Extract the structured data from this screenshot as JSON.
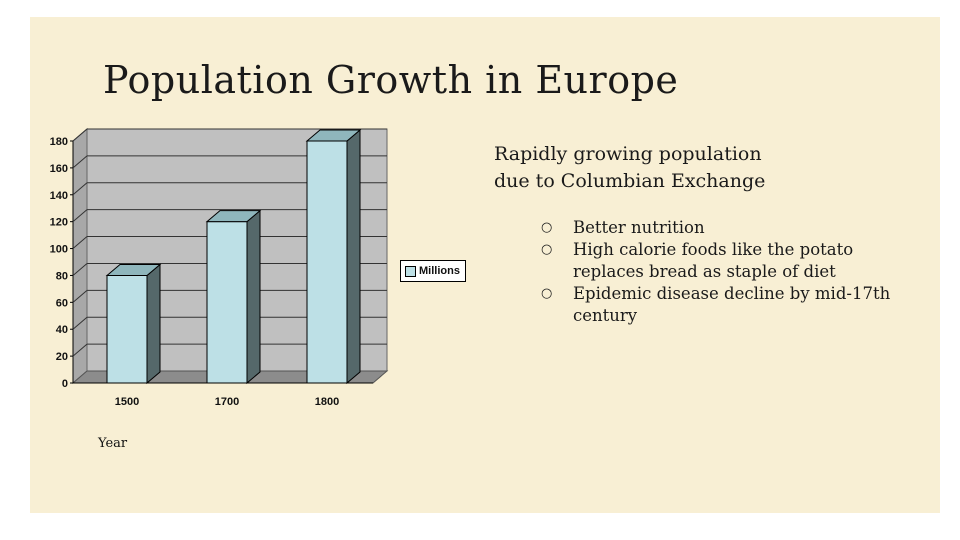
{
  "slide": {
    "title": "Population Growth in Europe"
  },
  "chart_data": {
    "type": "bar",
    "categories": [
      "1500",
      "1700",
      "1800"
    ],
    "series": [
      {
        "name": "Millions",
        "values": [
          80,
          120,
          180
        ]
      }
    ],
    "xlabel": "Year",
    "ylabel": "",
    "ylim": [
      0,
      180
    ],
    "yticks": [
      0,
      20,
      40,
      60,
      80,
      100,
      120,
      140,
      160,
      180
    ],
    "grid": true,
    "legend": "right",
    "colors": {
      "bar": "#bde0e6",
      "bar_side": "#55686a",
      "plot_bg": "#c0c0c0",
      "floor": "#8c8c8c"
    }
  },
  "notes": {
    "heading_line1": "Rapidly growing population",
    "heading_line2": "due to Columbian Exchange",
    "bullet_symbol": "○",
    "bullets": [
      "Better nutrition",
      "High calorie foods like the potato replaces bread as staple of diet",
      "Epidemic disease decline by mid-17th century"
    ]
  }
}
